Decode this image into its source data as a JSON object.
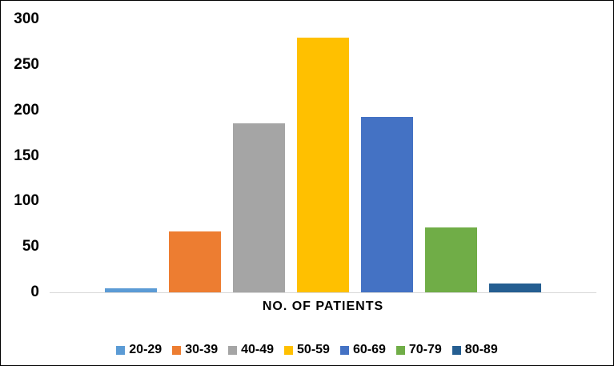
{
  "frame": {
    "background": "#FFFFFF",
    "border_color": "#000000"
  },
  "chart_data": {
    "type": "bar",
    "title": "",
    "xlabel": "NO. OF PATIENTS",
    "ylabel": "",
    "categories": [
      "20-29",
      "30-39",
      "40-49",
      "50-59",
      "60-69",
      "70-79",
      "80-89"
    ],
    "values": [
      4,
      67,
      186,
      280,
      193,
      71,
      10
    ],
    "colors": [
      "#5B9BD5",
      "#ED7D31",
      "#A5A5A5",
      "#FFC000",
      "#4472C4",
      "#70AD47",
      "#255E91"
    ],
    "ylim": [
      0,
      300
    ],
    "yticks": [
      0,
      50,
      100,
      150,
      200,
      250,
      300
    ],
    "grid": false,
    "legend_position": "bottom",
    "legend_labels": [
      "20-29",
      "30-39",
      "40-49",
      "50-59",
      "60-69",
      "70-79",
      "80-89"
    ],
    "axis_line_color": "#D9D9D9",
    "text_color": "#000000"
  }
}
